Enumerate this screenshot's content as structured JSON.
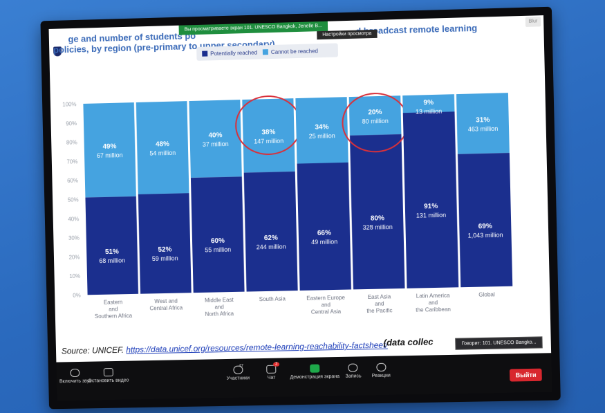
{
  "zoom": {
    "viewing_banner": "Вы просматриваете экран 101. UNESCO Bangkok, Jenelle B...",
    "view_options": "Настройки просмотра",
    "close_label": "Blur",
    "speaking": "Говорит: 101. UNESCO Bangko...",
    "toolbar": {
      "mute": "Включить звук",
      "video": "Остановить видео",
      "participants": "Участники",
      "participants_count": "47",
      "chat": "Чат",
      "chat_badge": "2",
      "share": "Демонстрация экрана",
      "record": "Запись",
      "reactions": "Реакции",
      "leave": "Выйти"
    }
  },
  "slide": {
    "title_line1": "ge and number of students po",
    "title_right": "d broadcast remote learning",
    "title_line2": "policies, by region (pre-primary to upper secondary)",
    "source": "Source: UNICEF.",
    "link": "https://data.unicef.org/resources/remote-learning-reachability-factsheet/",
    "note": "(data collec"
  },
  "colors": {
    "reached": "#1b2f8e",
    "not_reached": "#45a3e0",
    "circle": "#d9303a"
  },
  "chart_data": {
    "type": "bar",
    "stacked": true,
    "percent": true,
    "categories": [
      "Eastern and Southern Africa",
      "West and Central Africa",
      "Middle East and North Africa",
      "South Asia",
      "Eastern Europe and Central Asia",
      "East Asia and the Pacific",
      "Latin America and the Caribbean",
      "Global"
    ],
    "category_lines": [
      [
        "Eastern",
        "and",
        "Southern Africa"
      ],
      [
        "West and",
        "Central Africa"
      ],
      [
        "Middle East",
        "and",
        "North Africa"
      ],
      [
        "South Asia"
      ],
      [
        "Eastern Europe",
        "and",
        "Central Asia"
      ],
      [
        "East Asia",
        "and",
        "the Pacific"
      ],
      [
        "Latin America",
        "and",
        "the Caribbean"
      ],
      [
        "Global"
      ]
    ],
    "series": [
      {
        "name": "Potentially reached",
        "values": [
          51,
          52,
          60,
          62,
          66,
          80,
          91,
          69
        ],
        "pct_labels": [
          "51%",
          "52%",
          "60%",
          "62%",
          "66%",
          "80%",
          "91%",
          "69%"
        ],
        "count_labels": [
          "68 million",
          "59 million",
          "55 million",
          "244 million",
          "49 million",
          "328 million",
          "131 million",
          "1,043 million"
        ]
      },
      {
        "name": "Cannot be reached",
        "values": [
          49,
          48,
          40,
          38,
          34,
          20,
          9,
          31
        ],
        "pct_labels": [
          "49%",
          "48%",
          "40%",
          "38%",
          "34%",
          "20%",
          "9%",
          "31%"
        ],
        "count_labels": [
          "67 million",
          "54 million",
          "37 million",
          "147 million",
          "25 million",
          "80 million",
          "13 million",
          "463 million"
        ]
      }
    ],
    "y_ticks": [
      "0%",
      "10%",
      "20%",
      "30%",
      "40%",
      "50%",
      "60%",
      "70%",
      "80%",
      "90%",
      "100%"
    ],
    "ylim": [
      0,
      100
    ],
    "highlighted": [
      "South Asia",
      "East Asia and the Pacific"
    ]
  }
}
